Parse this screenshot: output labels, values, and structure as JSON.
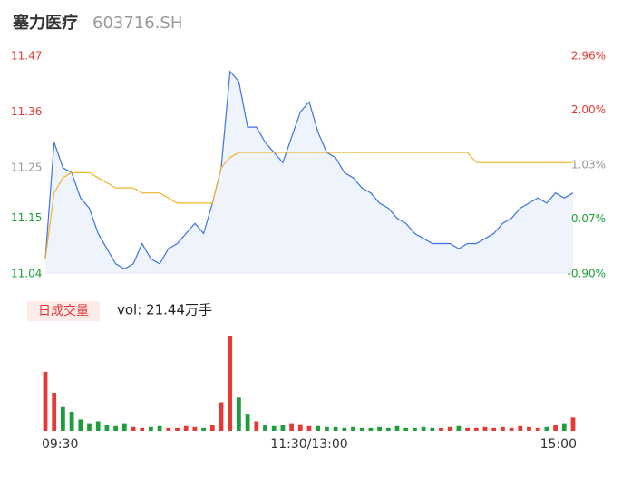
{
  "chart_data": [
    {
      "type": "line",
      "title": "塞力医疗",
      "subtitle": "603716.SH",
      "x": [
        0,
        4,
        8,
        12,
        16,
        20,
        24,
        28,
        32,
        36,
        40,
        44,
        48,
        52,
        56,
        60,
        64,
        68,
        72,
        76,
        80,
        84,
        88,
        92,
        96,
        100,
        104,
        108,
        112,
        116,
        120,
        124,
        128,
        132,
        136,
        140,
        144,
        148,
        152,
        156,
        160,
        164,
        168,
        172,
        176,
        180,
        184,
        188,
        192,
        196,
        200,
        204,
        208,
        212,
        216,
        220,
        224,
        228,
        232,
        236,
        240
      ],
      "xlim": [
        0,
        240
      ],
      "xticks": [
        {
          "value": 0,
          "label": "09:30"
        },
        {
          "value": 120,
          "label": "11:30/13:00"
        },
        {
          "value": 240,
          "label": "15:00"
        }
      ],
      "series": [
        {
          "name": "price",
          "color": "#3b74e0",
          "values": [
            11.07,
            11.3,
            11.25,
            11.24,
            11.19,
            11.17,
            11.12,
            11.09,
            11.06,
            11.05,
            11.06,
            11.1,
            11.07,
            11.06,
            11.09,
            11.1,
            11.12,
            11.14,
            11.12,
            11.18,
            11.25,
            11.44,
            11.42,
            11.33,
            11.33,
            11.3,
            11.28,
            11.26,
            11.31,
            11.36,
            11.38,
            11.32,
            11.28,
            11.27,
            11.24,
            11.23,
            11.21,
            11.2,
            11.18,
            11.17,
            11.15,
            11.14,
            11.12,
            11.11,
            11.1,
            11.1,
            11.1,
            11.09,
            11.1,
            11.1,
            11.11,
            11.12,
            11.14,
            11.15,
            11.17,
            11.18,
            11.19,
            11.18,
            11.2,
            11.19,
            11.2
          ]
        },
        {
          "name": "average",
          "color": "#f0b429",
          "values": [
            11.07,
            11.2,
            11.23,
            11.24,
            11.24,
            11.24,
            11.23,
            11.22,
            11.21,
            11.21,
            11.21,
            11.2,
            11.2,
            11.2,
            11.19,
            11.18,
            11.18,
            11.18,
            11.18,
            11.18,
            11.25,
            11.27,
            11.28,
            11.28,
            11.28,
            11.28,
            11.28,
            11.28,
            11.28,
            11.28,
            11.28,
            11.28,
            11.28,
            11.28,
            11.28,
            11.28,
            11.28,
            11.28,
            11.28,
            11.28,
            11.28,
            11.28,
            11.28,
            11.28,
            11.28,
            11.28,
            11.28,
            11.28,
            11.28,
            11.26,
            11.26,
            11.26,
            11.26,
            11.26,
            11.26,
            11.26,
            11.26,
            11.26,
            11.26,
            11.26,
            11.26
          ]
        }
      ],
      "ylim": [
        11.04,
        11.47
      ],
      "yticks": [
        11.04,
        11.15,
        11.25,
        11.36,
        11.47
      ],
      "y2lim": [
        -0.9,
        2.96
      ],
      "y2ticks": [
        {
          "value": -0.9,
          "label": "-0.90%"
        },
        {
          "value": 0.07,
          "label": "0.07%"
        },
        {
          "value": 1.03,
          "label": "1.03%"
        },
        {
          "value": 2.0,
          "label": "2.00%"
        },
        {
          "value": 2.96,
          "label": "2.96%"
        }
      ],
      "up_color": "#e53935",
      "flat_color": "#999999",
      "down_color": "#1e9e3a",
      "area_color": "#eef3fc"
    },
    {
      "type": "bar",
      "title": "日成交量",
      "annotation": "vol: 21.44万手",
      "x": [
        0,
        4,
        8,
        12,
        16,
        20,
        24,
        28,
        32,
        36,
        40,
        44,
        48,
        52,
        56,
        60,
        64,
        68,
        72,
        76,
        80,
        84,
        88,
        92,
        96,
        100,
        104,
        108,
        112,
        116,
        120,
        124,
        128,
        132,
        136,
        140,
        144,
        148,
        152,
        156,
        160,
        164,
        168,
        172,
        176,
        180,
        184,
        188,
        192,
        196,
        200,
        204,
        208,
        212,
        216,
        220,
        224,
        228,
        232,
        236,
        240
      ],
      "xlim": [
        0,
        240
      ],
      "values": [
        62,
        40,
        25,
        20,
        12,
        8,
        10,
        6,
        5,
        8,
        4,
        3,
        4,
        5,
        3,
        3,
        5,
        4,
        3,
        6,
        30,
        100,
        35,
        18,
        10,
        6,
        5,
        6,
        8,
        7,
        5,
        5,
        4,
        4,
        3,
        4,
        3,
        3,
        4,
        3,
        5,
        3,
        3,
        4,
        3,
        3,
        4,
        5,
        3,
        3,
        4,
        3,
        4,
        3,
        5,
        4,
        3,
        4,
        6,
        8,
        14
      ],
      "ylim": [
        0,
        100
      ],
      "up_color": "#e53935",
      "down_color": "#1e9e3a"
    }
  ]
}
